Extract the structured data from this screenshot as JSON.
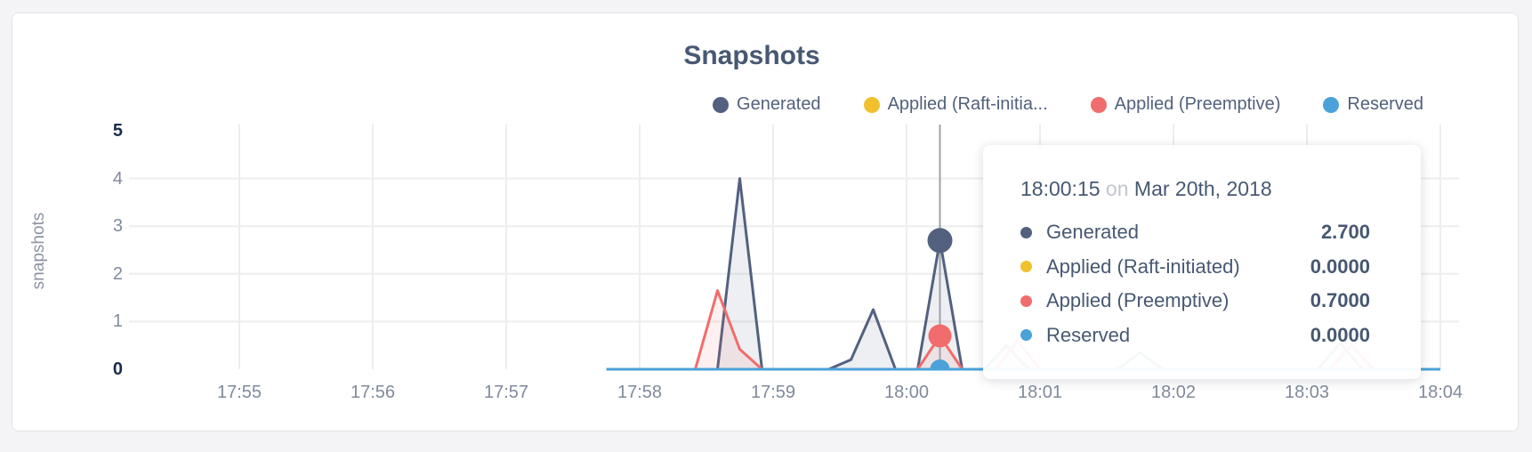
{
  "page": {
    "background": "#F4F4F6",
    "card_background": "#FFFFFF",
    "card_border": "#E3E3E6"
  },
  "chart_data": {
    "type": "area",
    "title": "Snapshots",
    "xlabel": "",
    "ylabel": "snapshots",
    "ylim": [
      0,
      5
    ],
    "grid": true,
    "legend_position": "top-right",
    "x_tick_labels": [
      "17:55",
      "17:56",
      "17:57",
      "17:58",
      "17:59",
      "18:00",
      "18:01",
      "18:02",
      "18:03",
      "18:04"
    ],
    "y_ticks": [
      {
        "value": 5,
        "emphasis": true
      },
      {
        "value": 4,
        "emphasis": false
      },
      {
        "value": 3,
        "emphasis": false
      },
      {
        "value": 2,
        "emphasis": false
      },
      {
        "value": 1,
        "emphasis": false
      },
      {
        "value": 0,
        "emphasis": true
      }
    ],
    "x_unit": "seconds_after_17:55:00",
    "series": [
      {
        "name": "Generated",
        "legend_label": "Generated",
        "color": "#53617F",
        "fill": "rgba(83,97,127,0.10)",
        "points": [
          [
            165,
            0
          ],
          [
            205,
            0
          ],
          [
            215,
            0
          ],
          [
            225,
            4.0
          ],
          [
            235,
            0
          ],
          [
            265,
            0
          ],
          [
            275,
            0.2
          ],
          [
            285,
            1.25
          ],
          [
            295,
            0
          ],
          [
            305,
            0
          ],
          [
            315,
            2.7
          ],
          [
            325,
            0
          ],
          [
            335,
            0
          ],
          [
            345,
            0.5
          ],
          [
            355,
            0
          ],
          [
            395,
            0
          ],
          [
            405,
            0.35
          ],
          [
            415,
            0
          ],
          [
            485,
            0
          ],
          [
            495,
            0.55
          ],
          [
            505,
            0
          ],
          [
            540,
            0
          ]
        ]
      },
      {
        "name": "Applied (Raft-initiated)",
        "legend_label": "Applied (Raft-initia...",
        "color": "#F0C02F",
        "fill": "rgba(240,192,47,0.10)",
        "points": [
          [
            165,
            0
          ],
          [
            540,
            0
          ]
        ]
      },
      {
        "name": "Applied (Preemptive)",
        "legend_label": "Applied (Preemptive)",
        "color": "#F16C6C",
        "fill": "rgba(241,108,108,0.10)",
        "points": [
          [
            165,
            0
          ],
          [
            205,
            0
          ],
          [
            215,
            1.65
          ],
          [
            225,
            0.42
          ],
          [
            235,
            0
          ],
          [
            305,
            0
          ],
          [
            315,
            0.7
          ],
          [
            325,
            0
          ],
          [
            340,
            0
          ],
          [
            350,
            0.6
          ],
          [
            360,
            0
          ],
          [
            490,
            0
          ],
          [
            500,
            0.5
          ],
          [
            510,
            0
          ],
          [
            540,
            0
          ]
        ]
      },
      {
        "name": "Reserved",
        "legend_label": "Reserved",
        "color": "#4BA2D9",
        "fill": "rgba(75,162,217,0.10)",
        "points": [
          [
            165,
            0
          ],
          [
            540,
            0
          ]
        ]
      }
    ],
    "hover": {
      "t": 315,
      "time_label": "18:00:15",
      "markers": [
        {
          "series": "Generated",
          "v": 2.7,
          "r": 14
        },
        {
          "series": "Applied (Raft-initiated)",
          "v": 0,
          "r": 11
        },
        {
          "series": "Applied (Preemptive)",
          "v": 0.7,
          "r": 13
        },
        {
          "series": "Reserved",
          "v": 0,
          "r": 11
        }
      ]
    }
  },
  "tooltip": {
    "time": "18:00:15",
    "preposition": "on",
    "date": "Mar 20th, 2018",
    "rows": [
      {
        "label": "Generated",
        "value": "2.700",
        "color": "#53617F"
      },
      {
        "label": "Applied (Raft-initiated)",
        "value": "0.0000",
        "color": "#F0C02F"
      },
      {
        "label": "Applied (Preemptive)",
        "value": "0.7000",
        "color": "#F16C6C"
      },
      {
        "label": "Reserved",
        "value": "0.0000",
        "color": "#4BA2D9"
      }
    ]
  },
  "colors": {
    "title_text": "#475872",
    "legend_text": "#52617C",
    "tick_text": "#808A9C",
    "tick_text_emphasis": "#1A2C4E",
    "axis_title_text": "#8C93A4",
    "tooltip_text": "#475872",
    "tooltip_muted": "#C2C6CE",
    "gridline": "#EDEDEF",
    "hover_line": "#9EA2A8"
  }
}
